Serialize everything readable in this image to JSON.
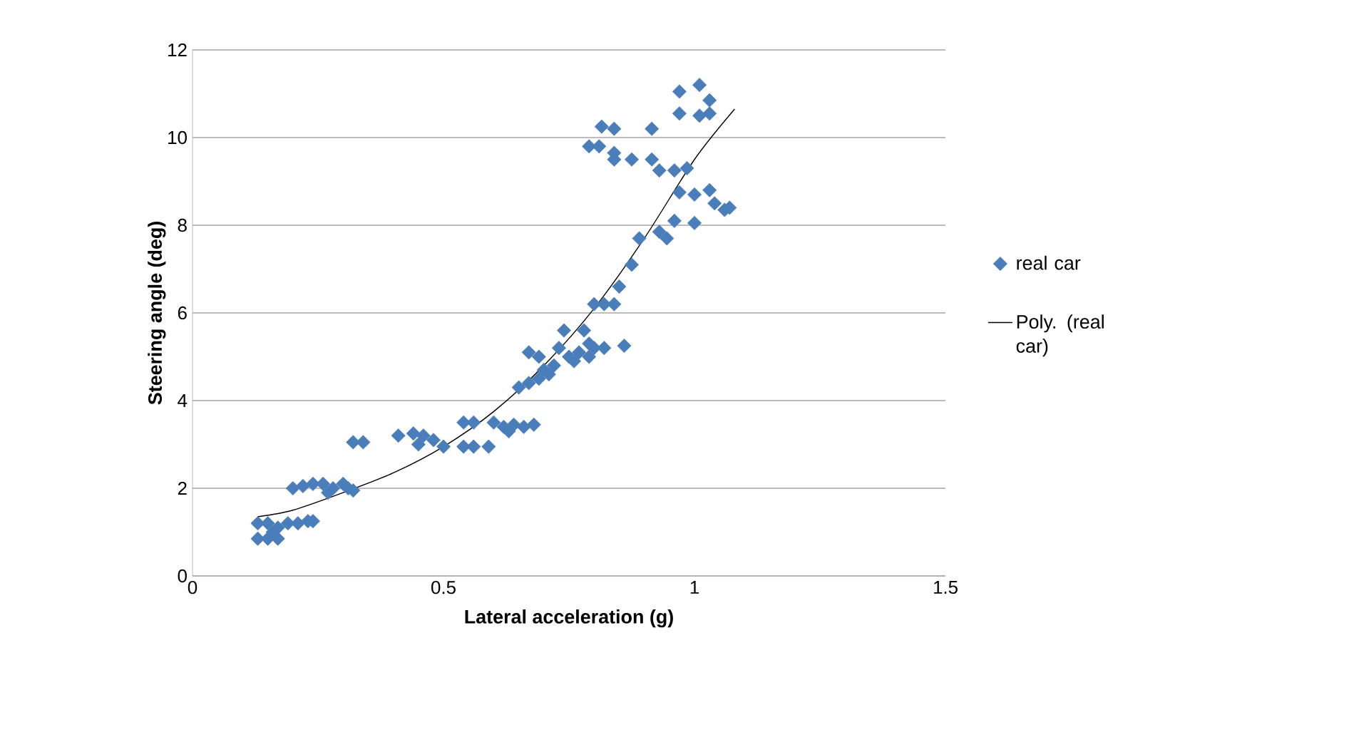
{
  "chart_data": {
    "type": "scatter",
    "xlabel": "Lateral acceleration (g)",
    "ylabel": "Steering angle (deg)",
    "xlim": [
      0,
      1.5
    ],
    "xticks": [
      0,
      0.5,
      1,
      1.5
    ],
    "ylim": [
      0,
      12
    ],
    "yticks": [
      0,
      2,
      4,
      6,
      8,
      10,
      12
    ],
    "grid": "y",
    "legend": "right",
    "series": [
      {
        "name": "real car",
        "marker": "diamond",
        "color": "#4a7ebb",
        "x": [
          0.13,
          0.15,
          0.17,
          0.13,
          0.15,
          0.17,
          0.19,
          0.21,
          0.23,
          0.24,
          0.16,
          0.2,
          0.22,
          0.24,
          0.26,
          0.28,
          0.3,
          0.32,
          0.27,
          0.31,
          0.32,
          0.34,
          0.41,
          0.44,
          0.46,
          0.48,
          0.45,
          0.5,
          0.54,
          0.56,
          0.6,
          0.62,
          0.64,
          0.66,
          0.54,
          0.56,
          0.59,
          0.63,
          0.68,
          0.65,
          0.67,
          0.69,
          0.7,
          0.72,
          0.67,
          0.69,
          0.73,
          0.75,
          0.74,
          0.77,
          0.79,
          0.78,
          0.8,
          0.82,
          0.86,
          0.71,
          0.76,
          0.79,
          0.8,
          0.82,
          0.84,
          0.85,
          0.875,
          0.89,
          0.97,
          1.01,
          1.03,
          0.97,
          1.01,
          1.03,
          0.815,
          0.84,
          0.915,
          0.79,
          0.81,
          0.84,
          0.84,
          0.875,
          0.915,
          0.93,
          0.96,
          0.985,
          0.97,
          1.0,
          1.03,
          1.04,
          1.07,
          1.06,
          1.0,
          0.96,
          0.93,
          0.945
        ],
        "values": [
          0.85,
          0.85,
          0.85,
          1.2,
          1.2,
          1.1,
          1.2,
          1.2,
          1.25,
          1.25,
          1.0,
          2.0,
          2.05,
          2.1,
          2.1,
          2.0,
          2.1,
          1.95,
          1.9,
          2.0,
          3.05,
          3.05,
          3.2,
          3.25,
          3.2,
          3.1,
          3.0,
          2.95,
          3.5,
          3.5,
          3.5,
          3.4,
          3.45,
          3.4,
          2.95,
          2.95,
          2.95,
          3.3,
          3.45,
          4.3,
          4.4,
          4.5,
          4.7,
          4.8,
          5.1,
          5.0,
          5.2,
          5.0,
          5.6,
          5.1,
          5.3,
          5.6,
          5.2,
          5.2,
          5.25,
          4.6,
          4.9,
          5.0,
          6.2,
          6.2,
          6.2,
          6.6,
          7.1,
          7.7,
          11.05,
          11.2,
          10.85,
          10.55,
          10.5,
          10.55,
          10.25,
          10.2,
          10.2,
          9.8,
          9.8,
          9.65,
          9.5,
          9.5,
          9.5,
          9.25,
          9.25,
          9.3,
          8.75,
          8.7,
          8.8,
          8.5,
          8.4,
          8.35,
          8.05,
          8.1,
          7.85,
          7.7
        ]
      },
      {
        "name": "Poly. (real car)",
        "type": "line",
        "marker": "none",
        "color": "#000000",
        "x": [
          0.13,
          0.2,
          0.3,
          0.4,
          0.5,
          0.6,
          0.7,
          0.8,
          0.9,
          1.0,
          1.08
        ],
        "values": [
          1.35,
          1.5,
          1.9,
          2.35,
          2.95,
          3.75,
          4.8,
          6.1,
          7.7,
          9.5,
          10.65
        ]
      }
    ]
  }
}
